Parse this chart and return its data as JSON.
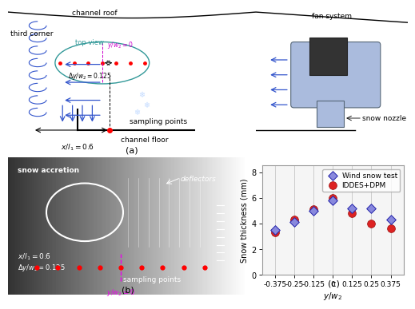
{
  "x_values": [
    -0.375,
    -0.25,
    -0.125,
    0,
    0.125,
    0.25,
    0.375
  ],
  "wind_snow_test": [
    3.5,
    4.1,
    5.0,
    5.8,
    5.2,
    5.2,
    4.3
  ],
  "iddes_dpm": [
    3.3,
    4.3,
    5.1,
    6.0,
    4.8,
    4.0,
    3.6
  ],
  "xlabel": "$y/w_2$",
  "ylabel": "Snow thickness (mm)",
  "xlim": [
    -0.46,
    0.46
  ],
  "ylim": [
    0,
    8.5
  ],
  "yticks": [
    0,
    2,
    4,
    6,
    8
  ],
  "xticks": [
    -0.375,
    -0.25,
    -0.125,
    0,
    0.125,
    0.25,
    0.375
  ],
  "xtick_labels": [
    "-0.375",
    "-0.25",
    "-0.125",
    "0",
    "0.125",
    "0.25",
    "0.375"
  ],
  "label_wind": "Wind snow test",
  "label_iddes": "IDDES+DPM",
  "wind_face": "#8888dd",
  "wind_edge": "#2222aa",
  "iddes_face": "#dd2222",
  "iddes_edge": "#991111",
  "panel_c_label": "(c)",
  "panel_a_label": "(a)",
  "panel_b_label": "(b)",
  "grid_color": "#cccccc",
  "plot_bg": "#f5f5f5",
  "channel_roof_text": "channel roof",
  "channel_floor_text": "channel floor",
  "fan_system_text": "fan system",
  "snow_nozzle_text": "snow nozzle",
  "third_corner_text": "third corner",
  "top_view_text": "top view",
  "sampling_points_text": "sampling points",
  "xl1_text": "$x/l_1=0.6$",
  "yw2_text": "$y/w_2=0$",
  "dyw2_text": "$\\Delta y/w_2=0.125$",
  "snow_accretion_text": "snow accretion",
  "deflectors_text": "deflectors"
}
